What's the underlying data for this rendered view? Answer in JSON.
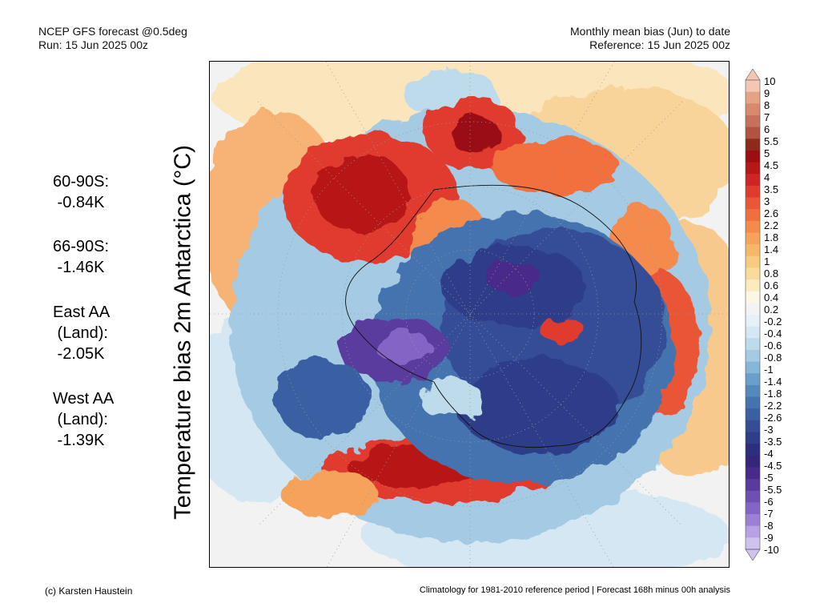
{
  "header": {
    "model": "NCEP GFS forecast @0.5deg",
    "run": "Run: 15 Jun 2025 00z",
    "product": "Monthly mean bias (Jun) to date",
    "reference": "Reference: 15 Jun 2025 00z"
  },
  "axis_title": "Temperature bias 2m Antarctica (°C)",
  "stats": [
    {
      "lines": [
        "60-90S:",
        " -0.84K"
      ]
    },
    {
      "lines": [
        "66-90S:",
        " -1.46K"
      ]
    },
    {
      "lines": [
        "East AA",
        " (Land):",
        " -2.05K"
      ]
    },
    {
      "lines": [
        "West AA",
        " (Land):",
        " -1.39K"
      ]
    }
  ],
  "colorbar": {
    "labels": [
      "10",
      "9",
      "8",
      "7",
      "6",
      "5.5",
      "5",
      "4.5",
      "4",
      "3.5",
      "3",
      "2.6",
      "2.2",
      "1.8",
      "1.4",
      "1",
      "0.8",
      "0.6",
      "0.4",
      "0.2",
      "-0.2",
      "-0.4",
      "-0.6",
      "-0.8",
      "-1",
      "-1.4",
      "-1.8",
      "-2.2",
      "-2.6",
      "-3",
      "-3.5",
      "-4",
      "-4.5",
      "-5",
      "-5.5",
      "-6",
      "-7",
      "-8",
      "-9",
      "-10"
    ],
    "colors": [
      "#f3c7b4",
      "#e6a285",
      "#d98a6c",
      "#c8705a",
      "#b2533f",
      "#8e2a1c",
      "#9b0f12",
      "#b81717",
      "#cf2424",
      "#e03b2d",
      "#ea5636",
      "#f16f3e",
      "#f48a4b",
      "#f6a25a",
      "#f7b76b",
      "#f8cb80",
      "#f9dc9c",
      "#fbebbf",
      "#fdf6e4",
      "#f3f3f3",
      "#e7f0f7",
      "#d5e7f2",
      "#bedbeb",
      "#a4cbe3",
      "#86b6d8",
      "#6b9fcb",
      "#5589bd",
      "#4473b0",
      "#3b5fa3",
      "#344d96",
      "#2f3d8a",
      "#2c2f80",
      "#352678",
      "#482a8a",
      "#5a3a9e",
      "#6e4fb4",
      "#8465c6",
      "#9d80d6",
      "#b7a0e3",
      "#cfc2ef"
    ]
  },
  "footer": {
    "credit": "(c) Karsten Haustein",
    "note": "Climatology for 1981-2010 reference period | Forecast 168h minus 00h analysis"
  }
}
